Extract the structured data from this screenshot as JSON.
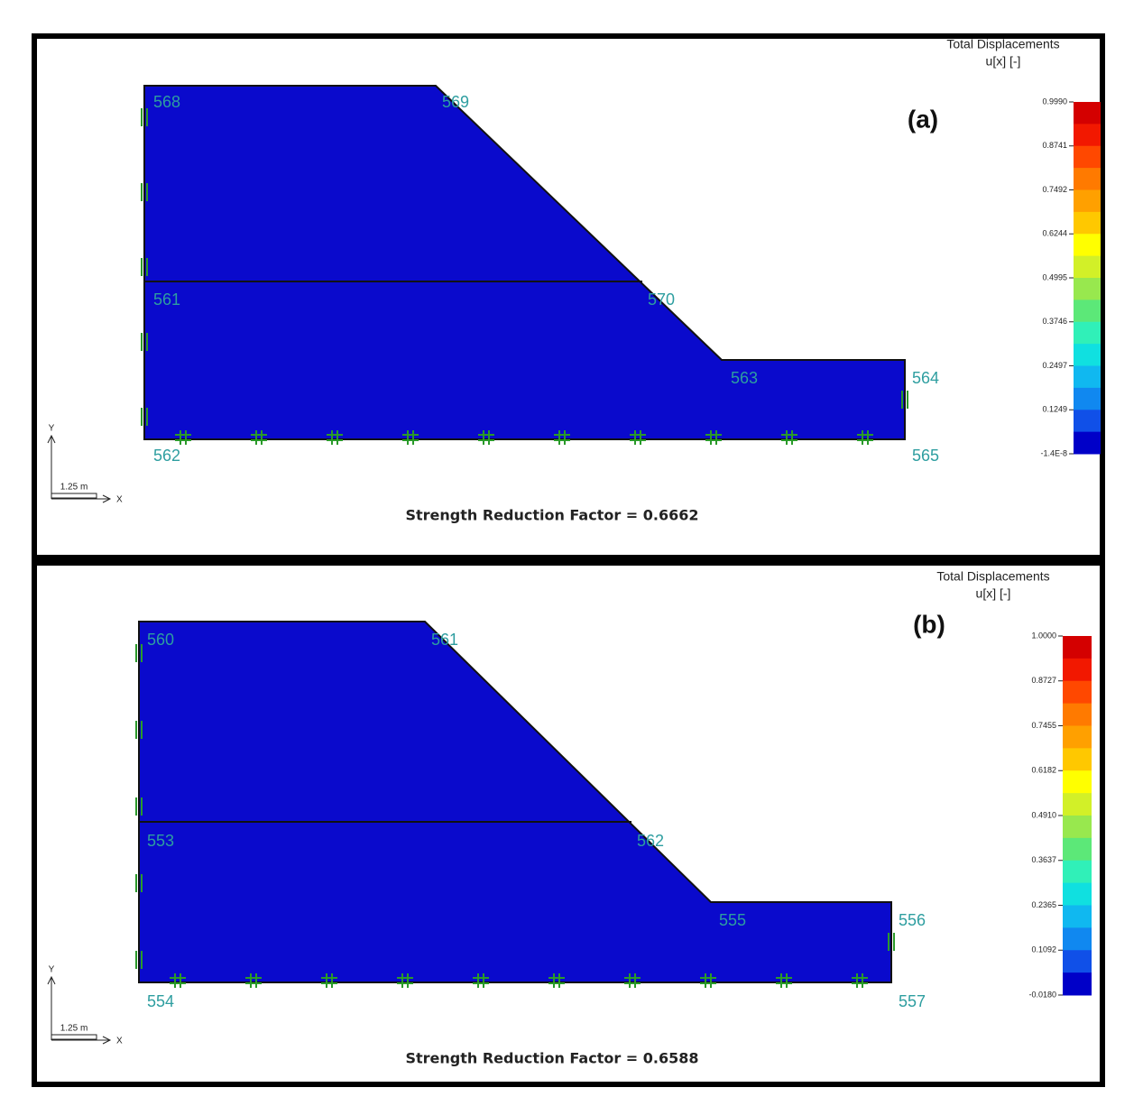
{
  "panels": [
    {
      "label": "(a)",
      "legend_title": "Total Displacements",
      "legend_unit": "u[x] [-]",
      "legend_ticks": [
        "0.9990",
        "0.8741",
        "0.7492",
        "0.6244",
        "0.4995",
        "0.3746",
        "0.2497",
        "0.1249",
        "-1.4E-8"
      ],
      "nodes": [
        "568",
        "569",
        "561",
        "570",
        "563",
        "564",
        "562",
        "565"
      ],
      "scale": "1.25 m",
      "axis_y": "Y",
      "axis_x": "X",
      "caption": "Strength Reduction Factor = 0.6662"
    },
    {
      "label": "(b)",
      "legend_title": "Total Displacements",
      "legend_unit": "u[x] [-]",
      "legend_ticks": [
        "1.0000",
        "0.8727",
        "0.7455",
        "0.6182",
        "0.4910",
        "0.3637",
        "0.2365",
        "0.1092",
        "-0.0180"
      ],
      "nodes": [
        "560",
        "561",
        "553",
        "562",
        "555",
        "556",
        "554",
        "557"
      ],
      "scale": "1.25 m",
      "axis_y": "Y",
      "axis_x": "X",
      "caption": "Strength Reduction Factor = 0.6588"
    }
  ]
}
